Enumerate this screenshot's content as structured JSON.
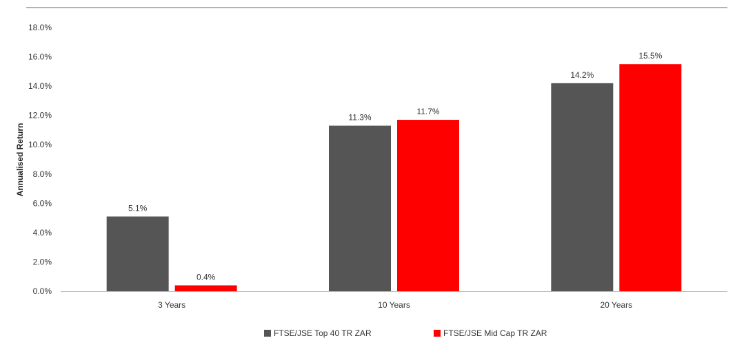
{
  "chart_data": {
    "type": "bar",
    "title": "",
    "xlabel": "",
    "ylabel": "Annualised Return",
    "ylim": [
      0,
      18
    ],
    "y_ticks": [
      "0.0%",
      "2.0%",
      "4.0%",
      "6.0%",
      "8.0%",
      "10.0%",
      "12.0%",
      "14.0%",
      "16.0%",
      "18.0%"
    ],
    "categories": [
      "3 Years",
      "10 Years",
      "20 Years"
    ],
    "series": [
      {
        "name": "FTSE/JSE Top 40 TR ZAR",
        "color": "#555555",
        "values": [
          5.1,
          11.3,
          14.2
        ],
        "data_labels": [
          "5.1%",
          "11.3%",
          "14.2%"
        ]
      },
      {
        "name": "FTSE/JSE Mid Cap TR ZAR",
        "color": "#ff0000",
        "values": [
          0.4,
          11.7,
          15.5
        ],
        "data_labels": [
          "0.4%",
          "11.7%",
          "15.5%"
        ]
      }
    ],
    "grid": false,
    "legend_position": "bottom-center"
  }
}
